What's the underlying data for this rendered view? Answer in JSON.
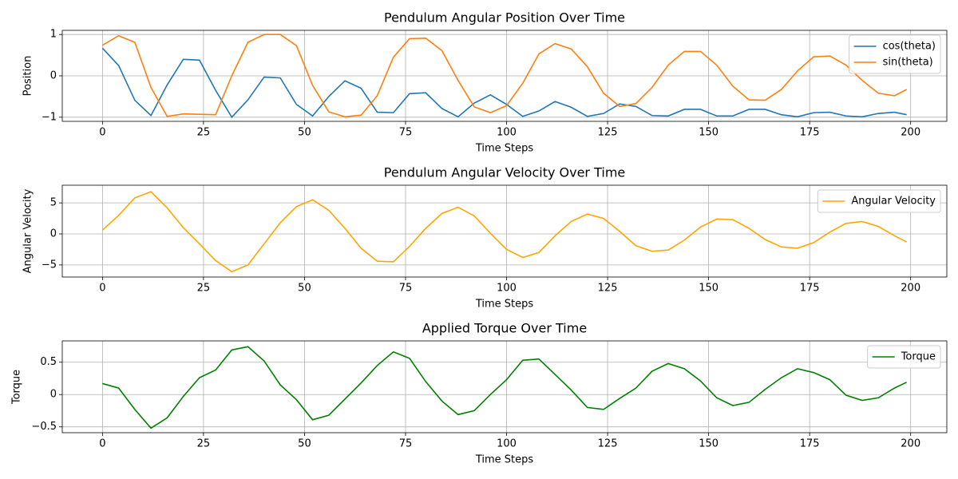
{
  "chart_data": [
    {
      "type": "line",
      "title": "Pendulum Angular Position Over Time",
      "x_label": "Time Steps",
      "y_label": "Position",
      "x": [
        0,
        4,
        8,
        12,
        16,
        20,
        24,
        28,
        32,
        36,
        40,
        44,
        48,
        52,
        56,
        60,
        64,
        68,
        72,
        76,
        80,
        84,
        88,
        92,
        96,
        100,
        104,
        108,
        112,
        116,
        120,
        124,
        128,
        132,
        136,
        140,
        144,
        148,
        152,
        156,
        160,
        164,
        168,
        172,
        176,
        180,
        184,
        188,
        192,
        196,
        199
      ],
      "series": [
        {
          "name": "cos(theta)",
          "color": "#1f77b4",
          "values": [
            0.67,
            0.25,
            -0.59,
            -0.96,
            -0.22,
            0.4,
            0.38,
            -0.35,
            -1.0,
            -0.58,
            -0.03,
            -0.05,
            -0.69,
            -0.97,
            -0.5,
            -0.12,
            -0.3,
            -0.88,
            -0.89,
            -0.43,
            -0.41,
            -0.79,
            -0.99,
            -0.66,
            -0.46,
            -0.69,
            -0.98,
            -0.85,
            -0.62,
            -0.76,
            -0.98,
            -0.91,
            -0.68,
            -0.74,
            -0.96,
            -0.97,
            -0.81,
            -0.81,
            -0.97,
            -0.97,
            -0.81,
            -0.81,
            -0.94,
            -0.99,
            -0.89,
            -0.88,
            -0.97,
            -0.99,
            -0.91,
            -0.88,
            -0.94
          ]
        },
        {
          "name": "sin(theta)",
          "color": "#ff7f0e",
          "values": [
            0.74,
            0.97,
            0.81,
            -0.28,
            -0.98,
            -0.92,
            -0.93,
            -0.94,
            0.0,
            0.81,
            1.0,
            1.0,
            0.73,
            -0.23,
            -0.87,
            -0.99,
            -0.95,
            -0.48,
            0.45,
            0.9,
            0.91,
            0.61,
            -0.11,
            -0.75,
            -0.89,
            -0.72,
            -0.18,
            0.53,
            0.78,
            0.65,
            0.22,
            -0.42,
            -0.74,
            -0.67,
            -0.28,
            0.26,
            0.59,
            0.59,
            0.26,
            -0.25,
            -0.58,
            -0.59,
            -0.33,
            0.12,
            0.46,
            0.48,
            0.26,
            -0.11,
            -0.42,
            -0.48,
            -0.33
          ]
        }
      ],
      "xlim": [
        -9.95,
        208.95
      ],
      "xticks": [
        0,
        25,
        50,
        75,
        100,
        125,
        150,
        175,
        200
      ],
      "ylim": [
        -1.1,
        1.1
      ],
      "yticks": [
        -1,
        0,
        1
      ],
      "grid": true,
      "legend": "upper right"
    },
    {
      "type": "line",
      "title": "Pendulum Angular Velocity Over Time",
      "x_label": "Time Steps",
      "y_label": "Angular Velocity",
      "x": [
        0,
        4,
        8,
        12,
        16,
        20,
        24,
        28,
        32,
        36,
        40,
        44,
        48,
        52,
        56,
        60,
        64,
        68,
        72,
        76,
        80,
        84,
        88,
        92,
        96,
        100,
        104,
        108,
        112,
        116,
        120,
        124,
        128,
        132,
        136,
        140,
        144,
        148,
        152,
        156,
        160,
        164,
        168,
        172,
        176,
        180,
        184,
        188,
        192,
        196,
        199
      ],
      "series": [
        {
          "name": "Angular Velocity",
          "color": "#ffa500",
          "values": [
            0.6,
            3.0,
            5.8,
            6.8,
            4.2,
            1.0,
            -1.6,
            -4.3,
            -6.1,
            -5.0,
            -1.6,
            1.8,
            4.4,
            5.5,
            3.8,
            0.9,
            -2.3,
            -4.4,
            -4.5,
            -2.0,
            0.9,
            3.3,
            4.3,
            2.9,
            0.1,
            -2.5,
            -3.8,
            -3.0,
            -0.3,
            2.0,
            3.2,
            2.5,
            0.4,
            -1.9,
            -2.8,
            -2.6,
            -1.0,
            1.1,
            2.4,
            2.3,
            0.9,
            -0.9,
            -2.1,
            -2.3,
            -1.4,
            0.3,
            1.7,
            2.0,
            1.2,
            -0.3,
            -1.3
          ]
        }
      ],
      "xlim": [
        -9.95,
        208.95
      ],
      "xticks": [
        0,
        25,
        50,
        75,
        100,
        125,
        150,
        175,
        200
      ],
      "ylim": [
        -6.95,
        7.85
      ],
      "yticks": [
        -5,
        0,
        5
      ],
      "grid": true,
      "legend": "upper right"
    },
    {
      "type": "line",
      "title": "Applied Torque Over Time",
      "x_label": "Time Steps",
      "y_label": "Torque",
      "x": [
        0,
        4,
        8,
        12,
        16,
        20,
        24,
        28,
        32,
        36,
        40,
        44,
        48,
        52,
        56,
        60,
        64,
        68,
        72,
        76,
        80,
        84,
        88,
        92,
        96,
        100,
        104,
        108,
        112,
        116,
        120,
        124,
        128,
        132,
        136,
        140,
        144,
        148,
        152,
        156,
        160,
        164,
        168,
        172,
        176,
        180,
        184,
        188,
        192,
        196,
        199
      ],
      "series": [
        {
          "name": "Torque",
          "color": "#008000",
          "values": [
            0.17,
            0.1,
            -0.23,
            -0.52,
            -0.36,
            -0.03,
            0.26,
            0.38,
            0.69,
            0.74,
            0.52,
            0.15,
            -0.08,
            -0.39,
            -0.32,
            -0.07,
            0.18,
            0.45,
            0.66,
            0.56,
            0.2,
            -0.1,
            -0.31,
            -0.25,
            0.0,
            0.23,
            0.53,
            0.55,
            0.31,
            0.07,
            -0.2,
            -0.23,
            -0.06,
            0.1,
            0.36,
            0.48,
            0.4,
            0.21,
            -0.05,
            -0.17,
            -0.12,
            0.08,
            0.26,
            0.4,
            0.34,
            0.23,
            -0.01,
            -0.09,
            -0.05,
            0.1,
            0.19
          ]
        }
      ],
      "xlim": [
        -9.95,
        208.95
      ],
      "xticks": [
        0,
        25,
        50,
        75,
        100,
        125,
        150,
        175,
        200
      ],
      "ylim": [
        -0.59,
        0.83
      ],
      "yticks": [
        -0.5,
        0.0,
        0.5
      ],
      "grid": true,
      "legend": "upper right"
    }
  ]
}
